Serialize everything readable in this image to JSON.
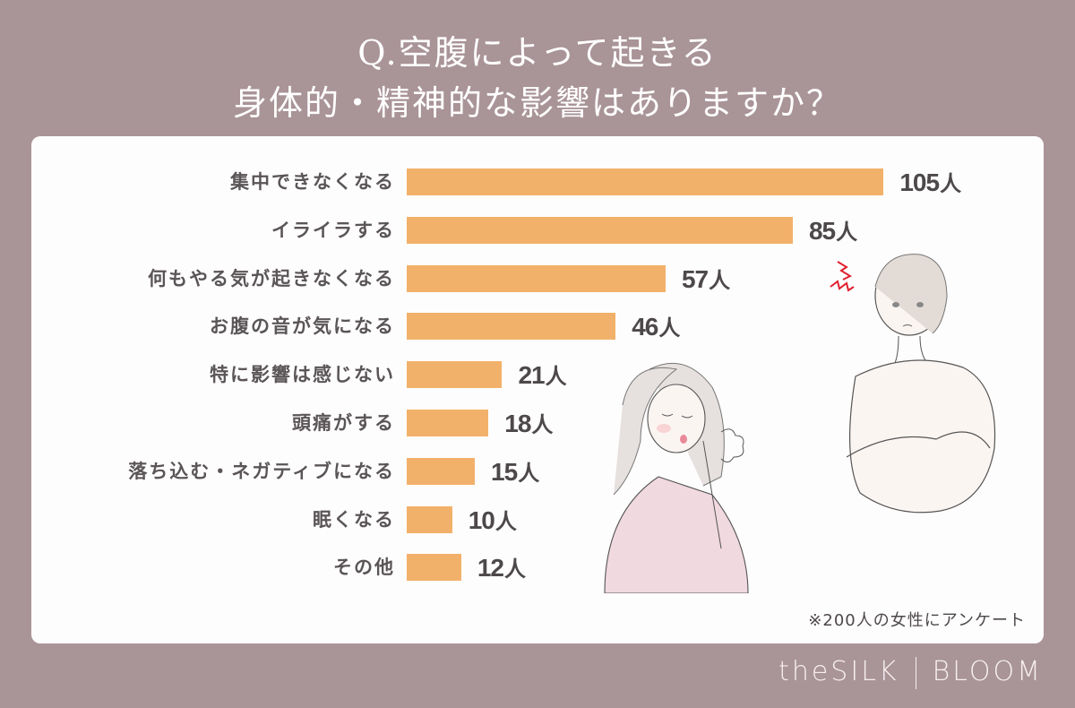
{
  "title": {
    "line1": "Q.空腹によって起きる",
    "line2": "身体的・精神的な影響はありますか？"
  },
  "note": "※200人の女性にアンケート",
  "brand": {
    "left": "theSILK",
    "right": "BLOOM"
  },
  "unit": "人",
  "colors": {
    "background": "#a99498",
    "card": "#fefdfd",
    "bar": "#f2b16a",
    "text": "#5a5556"
  },
  "chart_data": {
    "type": "bar",
    "orientation": "horizontal",
    "title": "Q.空腹によって起きる身体的・精神的な影響はありますか？",
    "categories": [
      "集中できなくなる",
      "イライラする",
      "何もやる気が起きなくなる",
      "お腹の音が気になる",
      "特に影響は感じない",
      "頭痛がする",
      "落ち込む・ネガティブになる",
      "眠くなる",
      "その他"
    ],
    "values": [
      105,
      85,
      57,
      46,
      21,
      18,
      15,
      10,
      12
    ],
    "value_labels": [
      "105人",
      "85人",
      "57人",
      "46人",
      "21人",
      "18人",
      "15人",
      "10人",
      "12人"
    ],
    "xlabel": "",
    "ylabel": "",
    "grid": false,
    "annotation": "※200人の女性にアンケート"
  },
  "illustrations": [
    {
      "name": "tired-woman-illustration"
    },
    {
      "name": "irritated-woman-illustration"
    }
  ]
}
